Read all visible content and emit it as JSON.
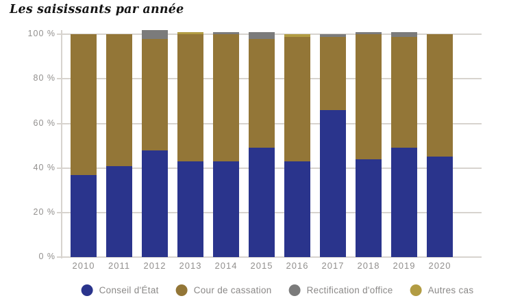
{
  "title": "Les saisissants par année",
  "chart_data": {
    "type": "bar",
    "stacked": true,
    "title": "Les saisissants par année",
    "xlabel": "",
    "ylabel": "",
    "ylim": [
      0,
      100
    ],
    "grid": true,
    "legend_position": "bottom",
    "yticks": [
      "0 %",
      "20 %",
      "40 %",
      "60 %",
      "80 %",
      "100 %"
    ],
    "categories": [
      "2010",
      "2011",
      "2012",
      "2013",
      "2014",
      "2015",
      "2016",
      "2017",
      "2018",
      "2019",
      "2020"
    ],
    "series": [
      {
        "name": "Conseil d'État",
        "color": "#2a348c",
        "values": [
          37,
          41,
          48,
          43,
          43,
          49,
          43,
          66,
          44,
          49,
          45
        ]
      },
      {
        "name": "Cour de cassation",
        "color": "#937637",
        "values": [
          63,
          59,
          50,
          57,
          57,
          49,
          56,
          33,
          56,
          50,
          55
        ]
      },
      {
        "name": "Rectification d'office",
        "color": "#7b7b7b",
        "values": [
          0,
          0,
          4,
          0,
          1,
          3,
          0,
          1,
          1,
          2,
          0
        ]
      },
      {
        "name": "Autres cas",
        "color": "#b29c43",
        "values": [
          0,
          0,
          0,
          1,
          0,
          0,
          1,
          0,
          0,
          0,
          0
        ]
      }
    ]
  },
  "colors": {
    "grid": "#d7d3ce",
    "axis_text": "#918f8d",
    "legend_text": "#8a8887",
    "title_text": "#141414"
  }
}
